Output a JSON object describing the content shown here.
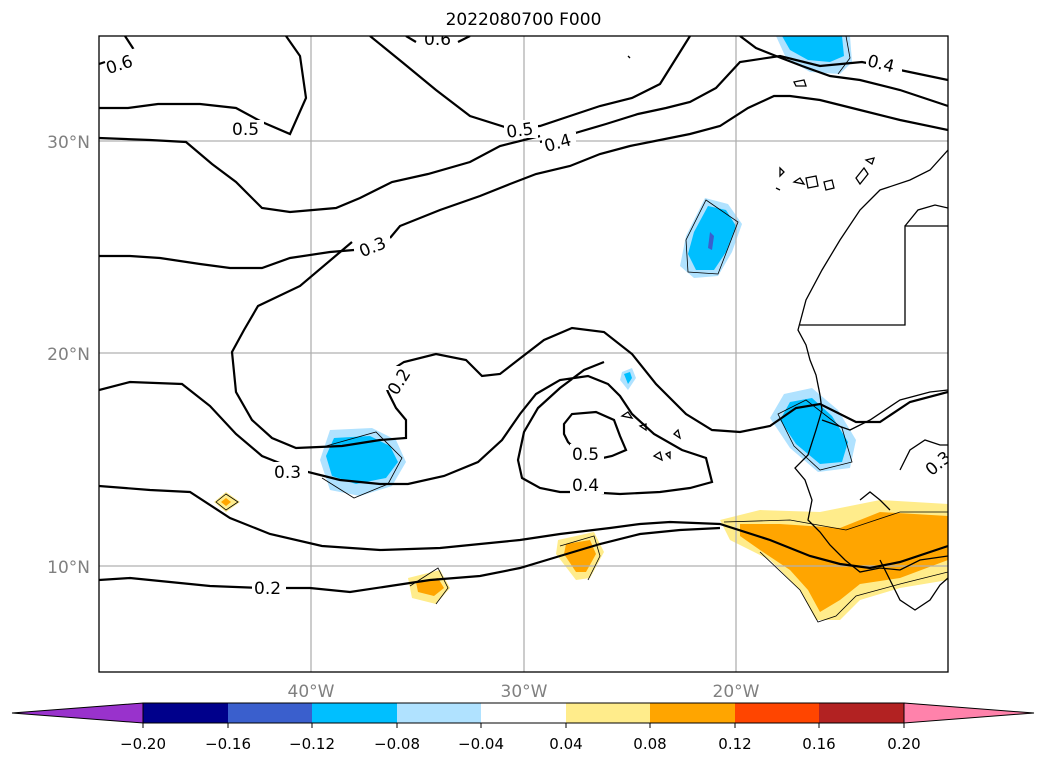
{
  "title": "2022080700 F000",
  "map": {
    "lat_labels": [
      "30°N",
      "20°N",
      "10°N"
    ],
    "lon_labels": [
      "40°W",
      "30°W",
      "20°W"
    ],
    "extent": {
      "lon": [
        -50,
        -10
      ],
      "lat": [
        5,
        35
      ]
    },
    "grid": true,
    "contour_color": "#000000",
    "contour_labels": [
      "0.6",
      "0.6",
      "0.5",
      "0.5",
      "0.4",
      "0.4",
      "0.3",
      "0.3",
      "0.2",
      "0.5",
      "0.4",
      "0.2",
      "0.3"
    ]
  },
  "colorbar": {
    "tick_labels": [
      "−0.20",
      "−0.16",
      "−0.12",
      "−0.08",
      "−0.04",
      "0.04",
      "0.08",
      "0.12",
      "0.16",
      "0.20"
    ],
    "colors": [
      "#9932cc",
      "#00008b",
      "#3a5fcd",
      "#00bfff",
      "#b0e2ff",
      "#ffffff",
      "#ffec8b",
      "#ffa500",
      "#ff4500",
      "#b22222",
      "#ff82ab"
    ]
  }
}
